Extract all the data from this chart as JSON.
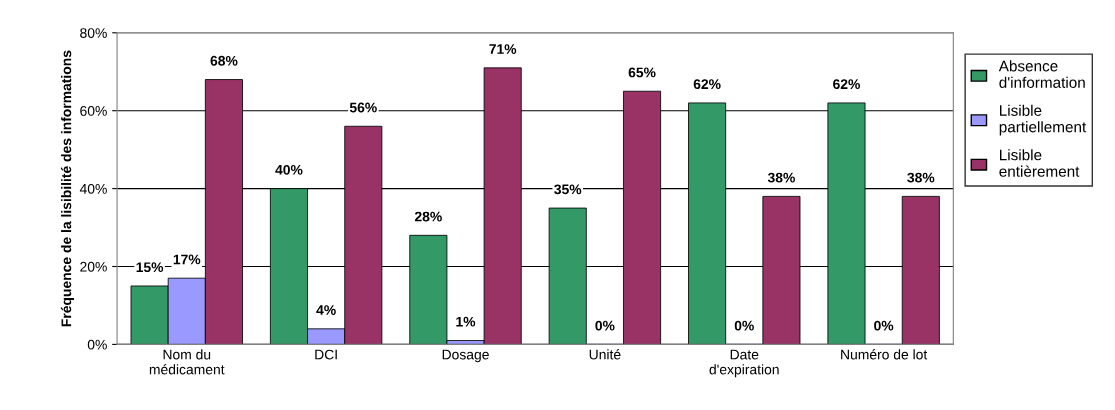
{
  "chart_data": {
    "type": "bar",
    "ylabel": "Fréquence de la lisibilité des informations",
    "categories": [
      "Nom du\nmédicament",
      "DCI",
      "Dosage",
      "Unité",
      "Date\nd'expiration",
      "Numéro de lot"
    ],
    "series": [
      {
        "name": "Absence\nd'information",
        "color": "#339966",
        "values": [
          15,
          40,
          28,
          35,
          62,
          62
        ],
        "value_labels": [
          "15%",
          "40%",
          "28%",
          "35%",
          "62%",
          "62%"
        ]
      },
      {
        "name": "Lisible\npartiellement",
        "color": "#9999ff",
        "values": [
          17,
          4,
          1,
          0,
          0,
          0
        ],
        "value_labels": [
          "17%",
          "4%",
          "1%",
          "0%",
          "0%",
          "0%"
        ]
      },
      {
        "name": "Lisible\nentièrement",
        "color": "#993366",
        "values": [
          68,
          56,
          71,
          65,
          38,
          38
        ],
        "value_labels": [
          "68%",
          "56%",
          "71%",
          "65%",
          "38%",
          "38%"
        ]
      }
    ],
    "ylim": [
      0,
      80
    ],
    "yticks": [
      {
        "value": 0,
        "label": "0%"
      },
      {
        "value": 20,
        "label": "20%"
      },
      {
        "value": 40,
        "label": "40%"
      },
      {
        "value": 60,
        "label": "60%"
      },
      {
        "value": 80,
        "label": "80%"
      }
    ],
    "grid": "y",
    "legend": "right"
  }
}
